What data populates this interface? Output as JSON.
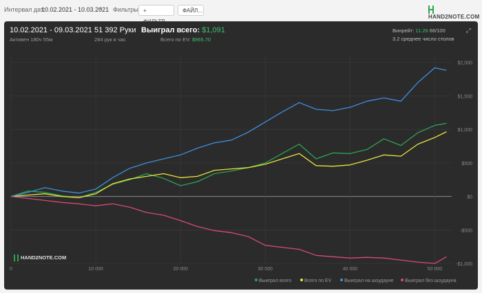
{
  "topbar": {
    "interval_label": "Интервал дат:",
    "date_range": "10.02.2021 - 10.03.2021",
    "filters_label": "Фильтры:",
    "filter_button": "ФИЛЬТР...",
    "file_button": "ФАЙЛ...",
    "logo_text": "HAND2NOTE.COM"
  },
  "summary": {
    "period": "10.02.2021 - 09.03.2021",
    "active": "Активен 180ч 55м",
    "hands": "51 392 Руки",
    "hands_rate": "284 рук в час",
    "won_label": "Выиграл всего:",
    "won_value": "$1,091",
    "ev_label": "Всего по EV:",
    "ev_value": "$965.70",
    "winrate_label": "Винрейт:",
    "winrate_value": "11.26",
    "winrate_tables": "66/100",
    "avg_tables": "3.2 среднее число столов"
  },
  "watermark": "HAND2NOTE.COM",
  "colors": {
    "won": "#2ea44f",
    "ev": "#e8e43c",
    "showdown": "#3f8fdf",
    "no_showdown": "#d94a72"
  },
  "chart_data": {
    "type": "line",
    "title": "",
    "xlabel": "",
    "ylabel": "",
    "xlim": [
      0,
      52000
    ],
    "ylim": [
      -1000,
      2100
    ],
    "x_ticks": [
      0,
      10000,
      20000,
      30000,
      40000,
      50000
    ],
    "x_tick_labels": [
      "0",
      "10 000",
      "20 000",
      "30 000",
      "40 000",
      "50 000"
    ],
    "y_ticks": [
      -1000,
      -500,
      0,
      500,
      1000,
      1500,
      2000
    ],
    "y_tick_labels": [
      "-$1,000",
      "-$500",
      "$0",
      "$500",
      "$1,000",
      "$1,500",
      "$2,000"
    ],
    "grid": true,
    "legend": "bottom-right",
    "x": [
      0,
      2000,
      4000,
      6000,
      8000,
      10000,
      12000,
      14000,
      16000,
      18000,
      20000,
      22000,
      24000,
      26000,
      28000,
      30000,
      32000,
      34000,
      36000,
      38000,
      40000,
      42000,
      44000,
      46000,
      48000,
      50000,
      51392
    ],
    "series": [
      {
        "name": "Выиграл всего",
        "color": "#2ea44f",
        "values": [
          0,
          80,
          60,
          10,
          -20,
          60,
          180,
          250,
          340,
          270,
          160,
          220,
          340,
          380,
          430,
          500,
          640,
          780,
          560,
          650,
          640,
          700,
          860,
          760,
          950,
          1060,
          1091
        ]
      },
      {
        "name": "Всего по EV",
        "color": "#e8e43c",
        "values": [
          0,
          20,
          40,
          0,
          -20,
          40,
          190,
          260,
          300,
          340,
          280,
          300,
          390,
          410,
          430,
          480,
          560,
          640,
          460,
          450,
          470,
          540,
          620,
          600,
          780,
          880,
          966
        ]
      },
      {
        "name": "Выиграл на шоудауне",
        "color": "#3f8fdf",
        "values": [
          0,
          60,
          130,
          80,
          50,
          110,
          280,
          420,
          500,
          560,
          620,
          720,
          800,
          840,
          960,
          1110,
          1260,
          1400,
          1300,
          1280,
          1330,
          1420,
          1470,
          1420,
          1700,
          1920,
          1880
        ]
      },
      {
        "name": "Выиграл без шоудауна",
        "color": "#d94a72",
        "values": [
          0,
          -30,
          -60,
          -90,
          -110,
          -140,
          -110,
          -160,
          -240,
          -280,
          -360,
          -450,
          -510,
          -540,
          -600,
          -730,
          -760,
          -790,
          -880,
          -900,
          -920,
          -910,
          -920,
          -950,
          -980,
          -1000,
          -900
        ]
      }
    ]
  }
}
